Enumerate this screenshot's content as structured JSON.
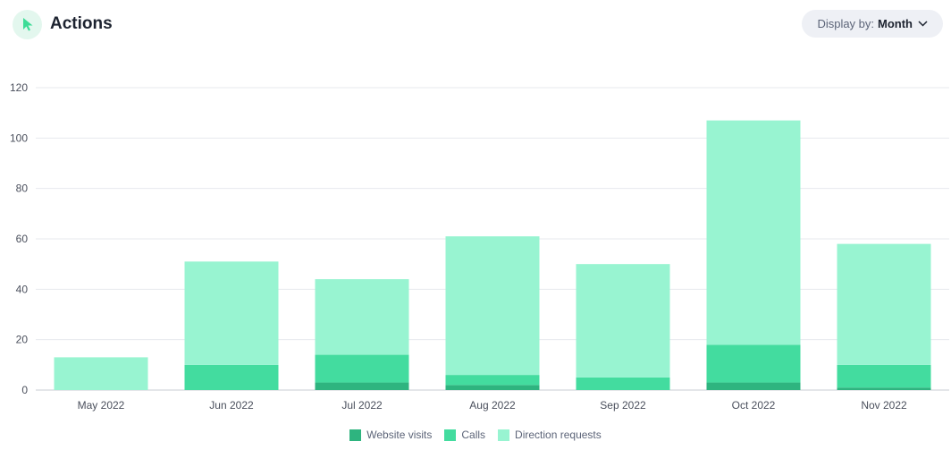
{
  "header": {
    "title": "Actions",
    "icon": "cursor-arrow-icon"
  },
  "display_by": {
    "label": "Display by:",
    "value": "Month",
    "icon": "chevron-down-icon"
  },
  "colors": {
    "website_visits": "#2eb47f",
    "calls": "#43dc9f",
    "direction_requests": "#98f4d1",
    "accent_icon": "#3ddc97"
  },
  "chart_data": {
    "type": "bar",
    "stacked": true,
    "categories": [
      "May 2022",
      "Jun 2022",
      "Jul 2022",
      "Aug 2022",
      "Sep 2022",
      "Oct 2022",
      "Nov 2022"
    ],
    "series": [
      {
        "name": "Website visits",
        "values": [
          0,
          0,
          3,
          2,
          0,
          3,
          1
        ]
      },
      {
        "name": "Calls",
        "values": [
          0,
          10,
          11,
          4,
          5,
          15,
          9
        ]
      },
      {
        "name": "Direction requests",
        "values": [
          13,
          41,
          30,
          55,
          45,
          89,
          48
        ]
      }
    ],
    "ylim": [
      0,
      120
    ],
    "yticks": [
      0,
      20,
      40,
      60,
      80,
      100,
      120
    ],
    "grid": true,
    "legend": "bottom"
  }
}
